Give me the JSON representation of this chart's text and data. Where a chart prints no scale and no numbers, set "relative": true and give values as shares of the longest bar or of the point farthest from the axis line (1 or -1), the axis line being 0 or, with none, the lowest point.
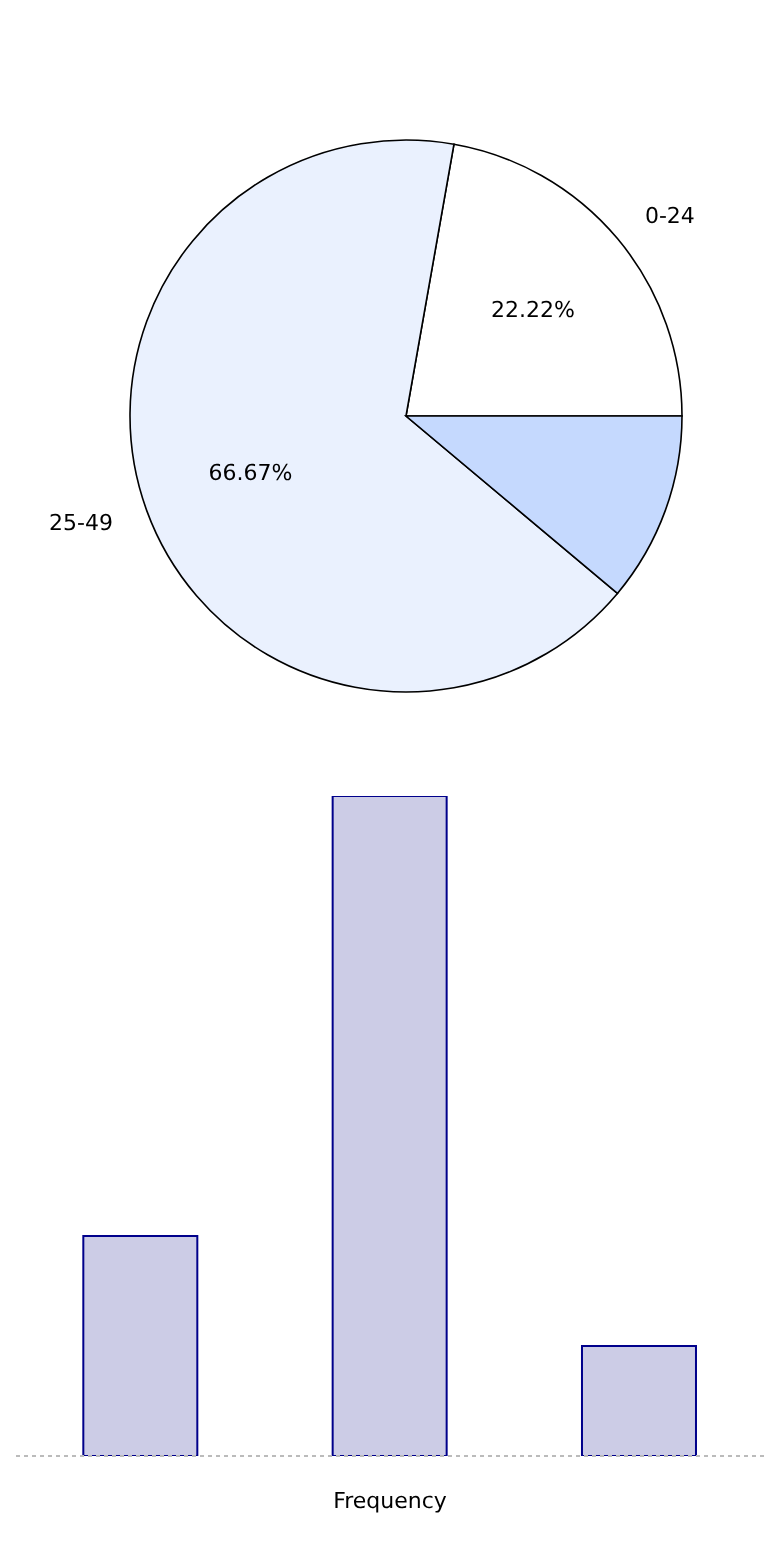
{
  "chart_data": [
    {
      "type": "pie",
      "categories": [
        "0-24",
        "25-49",
        null
      ],
      "values": [
        22.22,
        66.67,
        11.11
      ],
      "colors": [
        "#ffffff",
        "#eaf1fe",
        "#c5d9fe"
      ],
      "value_labels": [
        "22.22%",
        "66.67%",
        null
      ]
    },
    {
      "type": "bar",
      "categories": [
        null,
        null,
        null
      ],
      "values": [
        0.3333,
        1,
        0.1667
      ],
      "color": "#cccce6",
      "relative": true,
      "xlabel": "Frequency"
    }
  ]
}
